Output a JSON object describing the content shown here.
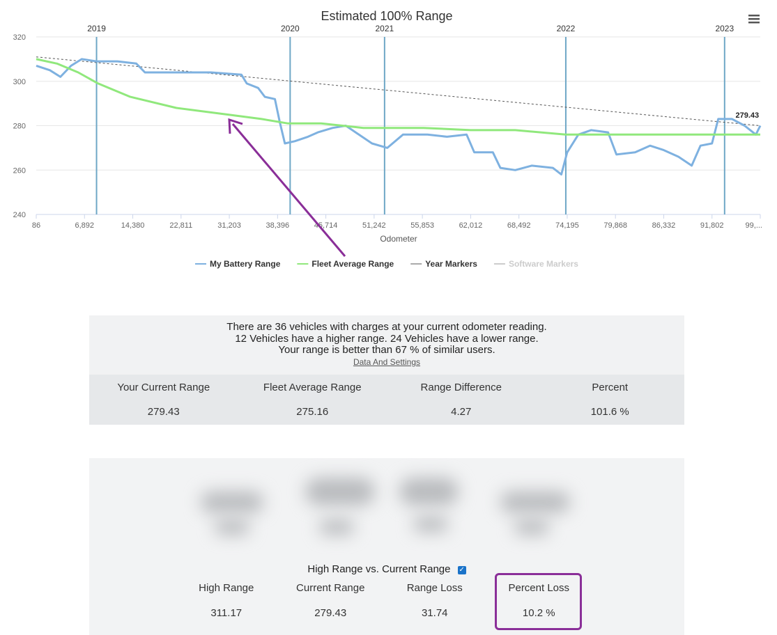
{
  "chart_data": {
    "type": "line",
    "title": "Estimated 100% Range",
    "x_label": "Odometer",
    "xlim": [
      86,
      99500
    ],
    "ylim": [
      240,
      320
    ],
    "yticks": [
      240,
      260,
      280,
      300,
      320
    ],
    "xticks": [
      86,
      {
        "value": 6892,
        "label": "6,892"
      },
      {
        "value": 14380,
        "label": "14,380"
      },
      {
        "value": 22811,
        "label": "22,811"
      },
      {
        "value": 31203,
        "label": "31,203"
      },
      {
        "value": 38396,
        "label": "38,396"
      },
      {
        "value": 45714,
        "label": "45,714"
      },
      {
        "value": 51242,
        "label": "51,242"
      },
      {
        "value": 55853,
        "label": "55,853"
      },
      {
        "value": 62012,
        "label": "62,012"
      },
      {
        "value": 68492,
        "label": "68,492"
      },
      {
        "value": 74195,
        "label": "74,195"
      },
      {
        "value": 79868,
        "label": "79,868"
      },
      {
        "value": 86332,
        "label": "86,332"
      },
      {
        "value": 91802,
        "label": "91,802"
      },
      {
        "value": 99500,
        "label": "99,..."
      }
    ],
    "grid": true,
    "series": [
      {
        "name": "My Battery Range",
        "color": "#7eb1e0",
        "x": [
          86,
          2000,
          3500,
          5000,
          6500,
          8760,
          12000,
          15000,
          16500,
          22000,
          28000,
          33000,
          33800,
          35500,
          36500,
          38000,
          38700,
          39500,
          41000,
          43000,
          44500,
          46500,
          48000,
          49500,
          51000,
          52500,
          54000,
          56500,
          59000,
          61500,
          62500,
          65000,
          66000,
          68000,
          70000,
          72500,
          73500,
          74195,
          75500,
          77000,
          79000,
          80000,
          82500,
          84500,
          86332,
          88000,
          89500,
          90500,
          91802,
          92800,
          95000,
          97000,
          98800,
          99500
        ],
        "values": [
          307,
          305,
          302,
          307,
          310,
          309,
          309,
          308,
          304,
          304,
          304,
          303,
          299,
          297,
          293,
          292,
          282,
          272,
          273,
          275,
          277,
          279,
          280,
          276,
          272,
          270,
          276,
          276,
          275,
          276,
          268,
          268,
          261,
          260,
          262,
          261,
          258,
          268,
          276,
          278,
          277,
          267,
          268,
          271,
          269,
          266,
          262,
          271,
          272,
          283,
          283,
          280,
          276,
          280
        ]
      },
      {
        "name": "Fleet Average Range",
        "color": "#90e87c",
        "x": [
          86,
          3000,
          6000,
          9000,
          14000,
          22000,
          31000,
          36000,
          40000,
          45000,
          50000,
          56000,
          62000,
          68000,
          74000,
          80000,
          86000,
          92000,
          99500
        ],
        "values": [
          310,
          308,
          304,
          299,
          293,
          288,
          285,
          283,
          281,
          281,
          279,
          279,
          278,
          278,
          276,
          276,
          276,
          276,
          276
        ]
      }
    ],
    "trend_line": {
      "color": "#555555",
      "x": [
        86,
        99500
      ],
      "values": [
        311,
        280
      ]
    },
    "year_markers": {
      "name": "Year Markers",
      "color": "#6ea7c6",
      "legend_color": "#aaaaaa",
      "items": [
        {
          "label": "2019",
          "x": 8760
        },
        {
          "label": "2020",
          "x": 40300
        },
        {
          "label": "2021",
          "x": 52240
        },
        {
          "label": "2022",
          "x": 74030
        },
        {
          "label": "2023",
          "x": 93810
        }
      ]
    },
    "software_markers": {
      "name": "Software Markers",
      "hidden": true
    },
    "annotation": {
      "text": "279.43",
      "x": 95000,
      "y": 283
    }
  },
  "summary": {
    "lines": [
      "There are 36 vehicles with charges at your current odometer reading.",
      "12 Vehicles have a higher range. 24 Vehicles have a lower range.",
      "Your range is better than 67 % of similar users."
    ],
    "link": "Data And Settings",
    "headers": [
      "Your Current Range",
      "Fleet Average Range",
      "Range Difference",
      "Percent"
    ],
    "values": [
      "279.43",
      "275.16",
      "4.27",
      "101.6 %"
    ]
  },
  "loss": {
    "checkbox_label": "High Range vs. Current Range",
    "headers": [
      "High Range",
      "Current Range",
      "Range Loss",
      "Percent Loss"
    ],
    "values": [
      "311.17",
      "279.43",
      "31.74",
      "10.2 %"
    ]
  }
}
